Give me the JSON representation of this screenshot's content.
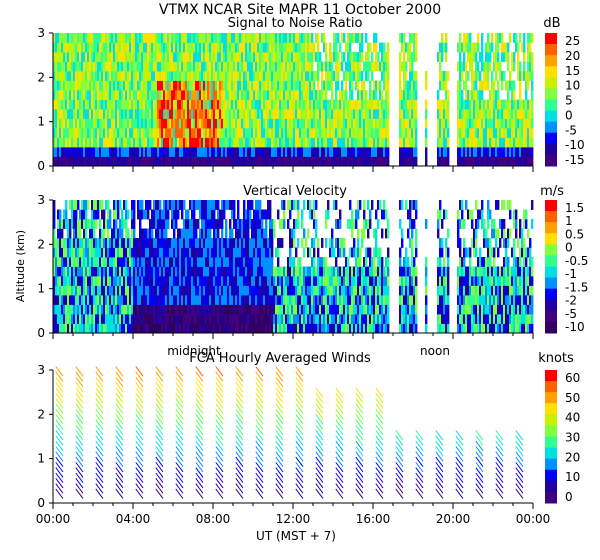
{
  "figure": {
    "title": "VTMX   NCAR Site   MAPR 11 October 2000",
    "xlabel": "UT   (MST + 7)",
    "ylabel": "Altitude (km)",
    "x_ticks": [
      "00:00",
      "04:00",
      "08:00",
      "12:00",
      "16:00",
      "20:00",
      "00:00"
    ],
    "y_ticks": [
      "0",
      "1",
      "2",
      "3"
    ],
    "time_markers": [
      {
        "label": "midnight",
        "hour": 7
      },
      {
        "label": "noon",
        "hour": 19
      }
    ]
  },
  "chart_data": [
    {
      "type": "heatmap",
      "title": "Signal to Noise Ratio",
      "unit": "dB",
      "x_range_hours": [
        0,
        24
      ],
      "ylim": [
        0,
        3
      ],
      "colorbar_labels": [
        "25",
        "20",
        "15",
        "10",
        "5",
        "0",
        "-5",
        "-10",
        "-15"
      ],
      "colorbar_colors": [
        "#ff0000",
        "#ff6000",
        "#ffa000",
        "#ffe000",
        "#c8f000",
        "#80ff40",
        "#30ff90",
        "#00e0e0",
        "#0090ff",
        "#0000ff",
        "#2000a0",
        "#400080"
      ],
      "missing_hours": [
        [
          16.8,
          17.3
        ],
        [
          18.2,
          18.6
        ],
        [
          18.7,
          19.2
        ],
        [
          19.8,
          20.2
        ]
      ]
    },
    {
      "type": "heatmap",
      "title": "Vertical Velocity",
      "unit": "m/s",
      "x_range_hours": [
        0,
        24
      ],
      "ylim": [
        0,
        3
      ],
      "colorbar_labels": [
        "1.5",
        "1",
        "0.5",
        "0",
        "-0.5",
        "-1",
        "-1.5",
        "-2",
        "-5",
        "-10"
      ],
      "colorbar_colors": [
        "#ff0000",
        "#ff6000",
        "#ffa000",
        "#ffe000",
        "#80ff40",
        "#30ff90",
        "#00e0e0",
        "#0090ff",
        "#0000ff",
        "#2000a0",
        "#400080",
        "#300060"
      ],
      "missing_hours": [
        [
          16.8,
          17.3
        ],
        [
          18.2,
          18.6
        ],
        [
          18.7,
          19.2
        ],
        [
          19.8,
          20.2
        ]
      ]
    },
    {
      "type": "wind_barbs",
      "title": "FCA Hourly Averaged Winds",
      "unit": "knots",
      "x_range_hours": [
        0,
        24
      ],
      "ylim": [
        0,
        3
      ],
      "colorbar_labels": [
        "60",
        "50",
        "40",
        "30",
        "20",
        "10",
        "0"
      ],
      "colorbar_colors": [
        "#ff0000",
        "#ff6000",
        "#ffa000",
        "#ffe000",
        "#c8f000",
        "#80ff40",
        "#30ff90",
        "#00e0e0",
        "#0090ff",
        "#0000ff",
        "#2000a0",
        "#400080"
      ]
    }
  ]
}
